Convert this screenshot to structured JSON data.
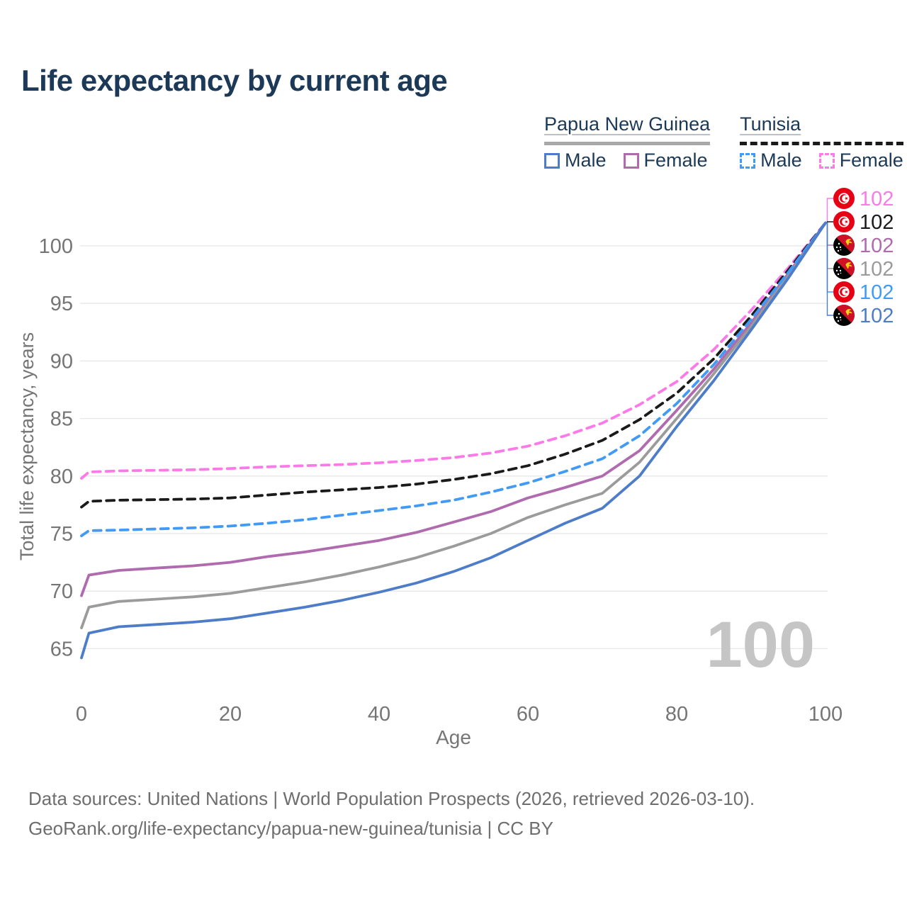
{
  "page": {
    "title": "Life expectancy by current age"
  },
  "legend": {
    "groups": [
      {
        "label": "Papua New Guinea",
        "line_style": "solid",
        "underline_color": "#a8a8a8",
        "items": [
          {
            "label": "Male",
            "color": "#4d7dc8",
            "dash": false
          },
          {
            "label": "Female",
            "color": "#b06aae",
            "dash": false
          }
        ]
      },
      {
        "label": "Tunisia",
        "line_style": "dashed",
        "underline_color": "#1a1a1a",
        "items": [
          {
            "label": "Male",
            "color": "#419af5",
            "dash": true
          },
          {
            "label": "Female",
            "color": "#fc7ae8",
            "dash": true
          }
        ]
      }
    ]
  },
  "chart_data": {
    "type": "line",
    "title": "Life expectancy by current age",
    "xlabel": "Age",
    "ylabel": "Total life expectancy, years",
    "xlim": [
      0,
      100
    ],
    "ylim": [
      63,
      103
    ],
    "x_ticks": [
      0,
      20,
      40,
      60,
      80,
      100
    ],
    "y_ticks": [
      65,
      70,
      75,
      80,
      85,
      90,
      95,
      100
    ],
    "grid": true,
    "legend_position": "top-right",
    "watermark": "100",
    "x": [
      0,
      1,
      5,
      10,
      15,
      20,
      25,
      30,
      35,
      40,
      45,
      50,
      55,
      60,
      65,
      70,
      75,
      80,
      85,
      90,
      95,
      100
    ],
    "series": [
      {
        "id": "tn-female",
        "name": "Tunisia Female",
        "country": "Tunisia",
        "sex": "Female",
        "color": "#fc7ae8",
        "dash": true,
        "flag": "tunisia",
        "end_label": "102",
        "values": [
          79.8,
          80.35,
          80.45,
          80.5,
          80.55,
          80.65,
          80.8,
          80.9,
          81.0,
          81.15,
          81.35,
          81.6,
          82.0,
          82.6,
          83.5,
          84.6,
          86.2,
          88.2,
          91.0,
          94.4,
          98.1,
          102
        ]
      },
      {
        "id": "tn-total",
        "name": "Tunisia Both sexes",
        "country": "Tunisia",
        "sex": "All",
        "color": "#1a1a1a",
        "dash": true,
        "flag": "tunisia",
        "end_label": "102",
        "values": [
          77.3,
          77.8,
          77.9,
          77.95,
          78.0,
          78.1,
          78.35,
          78.6,
          78.8,
          79.0,
          79.3,
          79.7,
          80.2,
          80.9,
          81.9,
          83.1,
          84.9,
          87.2,
          90.2,
          93.9,
          97.9,
          102
        ]
      },
      {
        "id": "png-female",
        "name": "Papua New Guinea Female",
        "country": "Papua New Guinea",
        "sex": "Female",
        "color": "#b06aae",
        "dash": false,
        "flag": "png",
        "end_label": "102",
        "values": [
          69.6,
          71.4,
          71.8,
          72.0,
          72.2,
          72.5,
          73.0,
          73.4,
          73.9,
          74.4,
          75.1,
          76.0,
          76.9,
          78.1,
          79.0,
          80.0,
          82.2,
          85.7,
          89.3,
          93.3,
          97.6,
          102
        ]
      },
      {
        "id": "png-total",
        "name": "Papua New Guinea Both sexes",
        "country": "Papua New Guinea",
        "sex": "All",
        "color": "#9b9b9b",
        "dash": false,
        "flag": "png",
        "end_label": "102",
        "values": [
          66.8,
          68.6,
          69.1,
          69.3,
          69.5,
          69.8,
          70.3,
          70.8,
          71.4,
          72.1,
          72.9,
          73.9,
          75.0,
          76.4,
          77.5,
          78.5,
          81.2,
          85.0,
          88.9,
          93.0,
          97.4,
          102
        ]
      },
      {
        "id": "tn-male",
        "name": "Tunisia Male",
        "country": "Tunisia",
        "sex": "Male",
        "color": "#419af5",
        "dash": true,
        "flag": "tunisia",
        "end_label": "102",
        "values": [
          74.8,
          75.25,
          75.3,
          75.4,
          75.5,
          75.65,
          75.9,
          76.2,
          76.6,
          77.0,
          77.4,
          77.9,
          78.6,
          79.4,
          80.4,
          81.5,
          83.5,
          86.3,
          89.7,
          93.6,
          97.7,
          102
        ]
      },
      {
        "id": "png-male",
        "name": "Papua New Guinea Male",
        "country": "Papua New Guinea",
        "sex": "Male",
        "color": "#4d7dc8",
        "dash": false,
        "flag": "png",
        "end_label": "102",
        "values": [
          64.2,
          66.35,
          66.9,
          67.1,
          67.3,
          67.6,
          68.1,
          68.6,
          69.2,
          69.9,
          70.7,
          71.7,
          72.9,
          74.4,
          75.9,
          77.2,
          80.0,
          84.3,
          88.3,
          92.7,
          97.2,
          102
        ]
      }
    ]
  },
  "colors": {
    "title_text": "#1c3a57",
    "axis_text": "#757575",
    "gridline": "#e7e7e7",
    "watermark": "#c5c5c5",
    "footer_text": "#6e6e6e",
    "tunisia_flag_red": "#e70013",
    "png_flag_red": "#ce1126",
    "png_flag_yellow": "#fcd116"
  },
  "footer": {
    "line1": "Data sources: United Nations | World Population Prospects (2026, retrieved 2026-03-10).",
    "line2": "GeoRank.org/life-expectancy/papua-new-guinea/tunisia | CC BY"
  }
}
